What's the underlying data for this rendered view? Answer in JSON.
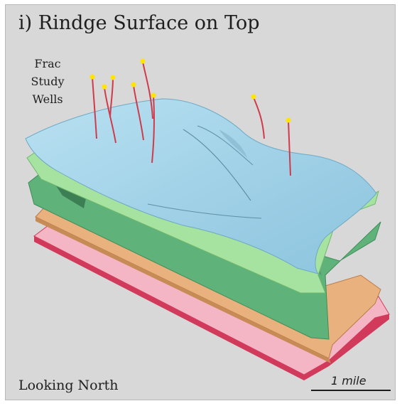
{
  "figure": {
    "title": "i) Rindge Surface on Top",
    "wells_label": [
      "Frac",
      "Study",
      "Wells"
    ],
    "orientation_label": "Looking North",
    "scale_label": "1 mile"
  },
  "layers": [
    {
      "name": "pink-layer",
      "color": "#f4b6c4",
      "edge": "#d23a5c"
    },
    {
      "name": "orange-layer",
      "color": "#e9b17e",
      "edge": "#b97a45"
    },
    {
      "name": "dark-green-layer",
      "color": "#5fb37a",
      "edge": "#3f8c58"
    },
    {
      "name": "light-green-layer",
      "color": "#a6e2a0",
      "edge": "#6fb86c"
    },
    {
      "name": "rindge-surface",
      "color": "#a9d6ea",
      "edge": "#6fa9c4"
    }
  ],
  "well_colors": {
    "shaft": "#cf3b4a",
    "tip": "#ffe500"
  }
}
